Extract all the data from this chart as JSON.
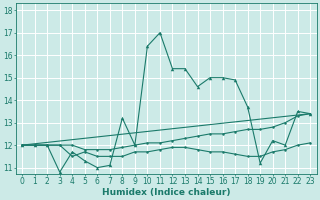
{
  "xlabel": "Humidex (Indice chaleur)",
  "xlim": [
    -0.5,
    23.5
  ],
  "ylim": [
    10.7,
    18.3
  ],
  "yticks": [
    11,
    12,
    13,
    14,
    15,
    16,
    17,
    18
  ],
  "xticks": [
    0,
    1,
    2,
    3,
    4,
    5,
    6,
    7,
    8,
    9,
    10,
    11,
    12,
    13,
    14,
    15,
    16,
    17,
    18,
    19,
    20,
    21,
    22,
    23
  ],
  "bg_color": "#cceae7",
  "line_color": "#1a7a6a",
  "grid_color": "#ffffff",
  "line1_y": [
    12.0,
    12.0,
    12.0,
    10.8,
    11.7,
    11.3,
    11.0,
    11.1,
    13.2,
    12.0,
    16.4,
    17.0,
    15.4,
    15.4,
    14.6,
    15.0,
    15.0,
    14.9,
    13.7,
    11.2,
    12.2,
    12.0,
    13.5,
    13.4
  ],
  "line2_y": [
    12.0,
    12.0,
    12.0,
    12.0,
    12.0,
    11.8,
    11.8,
    11.8,
    11.9,
    12.0,
    12.1,
    12.1,
    12.2,
    12.3,
    12.4,
    12.5,
    12.5,
    12.6,
    12.7,
    12.7,
    12.8,
    13.0,
    13.3,
    13.4
  ],
  "line3_y": [
    12.0,
    13.4
  ],
  "line3_x": [
    0,
    23
  ],
  "line4_y": [
    12.0,
    12.0,
    12.0,
    12.0,
    11.5,
    11.7,
    11.5,
    11.5,
    11.5,
    11.7,
    11.7,
    11.8,
    11.9,
    11.9,
    11.8,
    11.7,
    11.7,
    11.6,
    11.5,
    11.5,
    11.7,
    11.8,
    12.0,
    12.1
  ],
  "label_fontsize": 6.5,
  "tick_fontsize": 5.5
}
